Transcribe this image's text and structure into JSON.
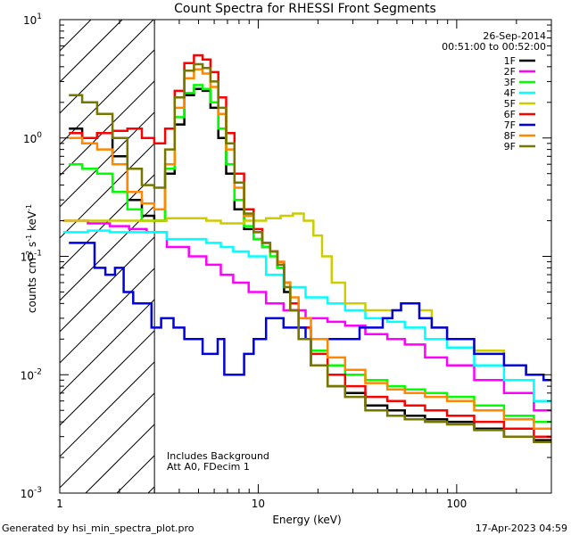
{
  "chart_data": {
    "type": "line",
    "title": "Count Spectra for RHESSI Front Segments",
    "xlabel": "Energy (keV)",
    "ylabel": "counts cm",
    "ylabel_sup1": "-2",
    "ylabel_s": " s",
    "ylabel_sup2": "-1",
    "ylabel_kev": " keV",
    "ylabel_sup3": "-1",
    "x_scale": "log",
    "y_scale": "log",
    "xlim": [
      1,
      300
    ],
    "ylim": [
      0.001,
      10
    ],
    "x_ticks": [
      {
        "value": 1,
        "label": "1"
      },
      {
        "value": 10,
        "label": "10"
      },
      {
        "value": 100,
        "label": "100"
      }
    ],
    "y_ticks": [
      {
        "value": 0.001,
        "base": "10",
        "exp": "-3"
      },
      {
        "value": 0.01,
        "base": "10",
        "exp": "-2"
      },
      {
        "value": 0.1,
        "base": "10",
        "exp": "-1"
      },
      {
        "value": 1,
        "base": "10",
        "exp": "0"
      },
      {
        "value": 10,
        "base": "10",
        "exp": "1"
      }
    ],
    "date": "26-Sep-2014",
    "time_range": "00:51:00 to 00:52:00",
    "shaded_region_max_kev": 3,
    "annotation_lines": [
      "Includes Background",
      "Att A0, FDecim 1"
    ],
    "footer_left": "Generated by hsi_min_spectra_plot.pro",
    "footer_right": "17-Apr-2023 04:59",
    "series": [
      {
        "name": "1F",
        "color": "#000000",
        "points": [
          [
            1.2,
            1.2
          ],
          [
            1.4,
            1.0
          ],
          [
            1.7,
            1.1
          ],
          [
            2.0,
            0.7
          ],
          [
            2.4,
            0.3
          ],
          [
            2.8,
            0.22
          ],
          [
            3.2,
            0.2
          ],
          [
            3.6,
            0.5
          ],
          [
            4.0,
            1.3
          ],
          [
            4.5,
            2.3
          ],
          [
            5.0,
            2.6
          ],
          [
            5.5,
            2.5
          ],
          [
            6.0,
            1.8
          ],
          [
            6.6,
            1.0
          ],
          [
            7.2,
            0.5
          ],
          [
            8.0,
            0.25
          ],
          [
            9.0,
            0.17
          ],
          [
            10,
            0.14
          ],
          [
            11,
            0.12
          ],
          [
            12,
            0.11
          ],
          [
            13,
            0.08
          ],
          [
            14,
            0.05
          ],
          [
            15,
            0.035
          ],
          [
            17,
            0.02
          ],
          [
            20,
            0.012
          ],
          [
            25,
            0.008
          ],
          [
            30,
            0.007
          ],
          [
            40,
            0.0055
          ],
          [
            50,
            0.005
          ],
          [
            60,
            0.0045
          ],
          [
            80,
            0.0042
          ],
          [
            100,
            0.004
          ],
          [
            150,
            0.0035
          ],
          [
            200,
            0.003
          ],
          [
            300,
            0.0028
          ]
        ]
      },
      {
        "name": "2F",
        "color": "#ff00ff",
        "points": [
          [
            1.2,
            0.2
          ],
          [
            1.6,
            0.19
          ],
          [
            2.0,
            0.18
          ],
          [
            2.5,
            0.17
          ],
          [
            3.0,
            0.16
          ],
          [
            4.0,
            0.12
          ],
          [
            5.0,
            0.1
          ],
          [
            6.0,
            0.085
          ],
          [
            7.0,
            0.07
          ],
          [
            8.0,
            0.06
          ],
          [
            10,
            0.05
          ],
          [
            12,
            0.04
          ],
          [
            15,
            0.035
          ],
          [
            20,
            0.03
          ],
          [
            25,
            0.028
          ],
          [
            30,
            0.026
          ],
          [
            40,
            0.022
          ],
          [
            50,
            0.02
          ],
          [
            60,
            0.018
          ],
          [
            80,
            0.014
          ],
          [
            100,
            0.012
          ],
          [
            150,
            0.009
          ],
          [
            200,
            0.007
          ],
          [
            300,
            0.005
          ]
        ]
      },
      {
        "name": "3F",
        "color": "#00ff00",
        "points": [
          [
            1.2,
            0.6
          ],
          [
            1.4,
            0.55
          ],
          [
            1.7,
            0.5
          ],
          [
            2.0,
            0.35
          ],
          [
            2.4,
            0.25
          ],
          [
            2.8,
            0.2
          ],
          [
            3.2,
            0.2
          ],
          [
            3.6,
            0.55
          ],
          [
            4.0,
            1.5
          ],
          [
            4.5,
            2.4
          ],
          [
            5.0,
            2.8
          ],
          [
            5.5,
            2.6
          ],
          [
            6.0,
            2.0
          ],
          [
            6.6,
            1.2
          ],
          [
            7.2,
            0.6
          ],
          [
            8.0,
            0.3
          ],
          [
            9.0,
            0.18
          ],
          [
            10,
            0.14
          ],
          [
            11,
            0.12
          ],
          [
            12,
            0.1
          ],
          [
            13,
            0.08
          ],
          [
            14,
            0.06
          ],
          [
            15,
            0.04
          ],
          [
            17,
            0.025
          ],
          [
            20,
            0.016
          ],
          [
            25,
            0.012
          ],
          [
            30,
            0.01
          ],
          [
            40,
            0.009
          ],
          [
            50,
            0.008
          ],
          [
            60,
            0.0075
          ],
          [
            80,
            0.007
          ],
          [
            100,
            0.0065
          ],
          [
            150,
            0.0055
          ],
          [
            200,
            0.0045
          ],
          [
            300,
            0.004
          ]
        ]
      },
      {
        "name": "4F",
        "color": "#00ffff",
        "points": [
          [
            1.2,
            0.16
          ],
          [
            1.6,
            0.165
          ],
          [
            2.0,
            0.16
          ],
          [
            2.5,
            0.16
          ],
          [
            3.0,
            0.16
          ],
          [
            4.0,
            0.14
          ],
          [
            5.0,
            0.14
          ],
          [
            6.0,
            0.13
          ],
          [
            7.0,
            0.12
          ],
          [
            8.0,
            0.11
          ],
          [
            10,
            0.1
          ],
          [
            12,
            0.07
          ],
          [
            15,
            0.055
          ],
          [
            20,
            0.045
          ],
          [
            25,
            0.04
          ],
          [
            30,
            0.035
          ],
          [
            40,
            0.03
          ],
          [
            50,
            0.028
          ],
          [
            60,
            0.025
          ],
          [
            80,
            0.02
          ],
          [
            100,
            0.017
          ],
          [
            150,
            0.012
          ],
          [
            200,
            0.009
          ],
          [
            300,
            0.006
          ]
        ]
      },
      {
        "name": "5F",
        "color": "#cccc00",
        "points": [
          [
            1.2,
            0.2
          ],
          [
            1.6,
            0.2
          ],
          [
            2.0,
            0.2
          ],
          [
            2.5,
            0.2
          ],
          [
            3.0,
            0.2
          ],
          [
            4.0,
            0.21
          ],
          [
            5.0,
            0.21
          ],
          [
            6.0,
            0.2
          ],
          [
            7.0,
            0.19
          ],
          [
            8.0,
            0.19
          ],
          [
            9.0,
            0.2
          ],
          [
            10,
            0.2
          ],
          [
            12,
            0.21
          ],
          [
            14,
            0.22
          ],
          [
            16,
            0.23
          ],
          [
            18,
            0.2
          ],
          [
            20,
            0.15
          ],
          [
            22,
            0.1
          ],
          [
            25,
            0.06
          ],
          [
            30,
            0.04
          ],
          [
            40,
            0.035
          ],
          [
            50,
            0.035
          ],
          [
            55,
            0.04
          ],
          [
            60,
            0.04
          ],
          [
            70,
            0.035
          ],
          [
            80,
            0.025
          ],
          [
            100,
            0.02
          ],
          [
            150,
            0.016
          ],
          [
            200,
            0.012
          ],
          [
            250,
            0.01
          ],
          [
            300,
            0.009
          ]
        ]
      },
      {
        "name": "6F",
        "color": "#ff0000",
        "points": [
          [
            1.2,
            1.1
          ],
          [
            1.4,
            1.0
          ],
          [
            1.7,
            1.1
          ],
          [
            2.0,
            1.15
          ],
          [
            2.4,
            1.2
          ],
          [
            2.8,
            1.0
          ],
          [
            3.2,
            0.9
          ],
          [
            3.6,
            1.2
          ],
          [
            4.0,
            2.5
          ],
          [
            4.5,
            4.3
          ],
          [
            5.0,
            5.0
          ],
          [
            5.5,
            4.6
          ],
          [
            6.0,
            3.6
          ],
          [
            6.6,
            2.2
          ],
          [
            7.2,
            1.1
          ],
          [
            8.0,
            0.5
          ],
          [
            9.0,
            0.25
          ],
          [
            10,
            0.17
          ],
          [
            11,
            0.13
          ],
          [
            12,
            0.11
          ],
          [
            13,
            0.09
          ],
          [
            14,
            0.06
          ],
          [
            15,
            0.04
          ],
          [
            17,
            0.025
          ],
          [
            20,
            0.015
          ],
          [
            25,
            0.01
          ],
          [
            30,
            0.008
          ],
          [
            40,
            0.0065
          ],
          [
            50,
            0.006
          ],
          [
            60,
            0.0055
          ],
          [
            80,
            0.005
          ],
          [
            100,
            0.0045
          ],
          [
            150,
            0.004
          ],
          [
            200,
            0.0035
          ],
          [
            300,
            0.003
          ]
        ]
      },
      {
        "name": "7F",
        "color": "#0000dd",
        "points": [
          [
            1.2,
            0.13
          ],
          [
            1.4,
            0.13
          ],
          [
            1.6,
            0.08
          ],
          [
            1.8,
            0.07
          ],
          [
            2.0,
            0.08
          ],
          [
            2.2,
            0.05
          ],
          [
            2.5,
            0.04
          ],
          [
            2.8,
            0.04
          ],
          [
            3.0,
            0.025
          ],
          [
            3.5,
            0.03
          ],
          [
            4.0,
            0.025
          ],
          [
            4.5,
            0.02
          ],
          [
            5.0,
            0.02
          ],
          [
            5.5,
            0.015
          ],
          [
            6.0,
            0.015
          ],
          [
            6.5,
            0.02
          ],
          [
            7.0,
            0.01
          ],
          [
            8.0,
            0.01
          ],
          [
            9.0,
            0.015
          ],
          [
            10,
            0.02
          ],
          [
            12,
            0.03
          ],
          [
            15,
            0.025
          ],
          [
            20,
            0.02
          ],
          [
            25,
            0.02
          ],
          [
            30,
            0.02
          ],
          [
            35,
            0.025
          ],
          [
            40,
            0.025
          ],
          [
            45,
            0.03
          ],
          [
            50,
            0.035
          ],
          [
            55,
            0.04
          ],
          [
            60,
            0.04
          ],
          [
            70,
            0.03
          ],
          [
            80,
            0.025
          ],
          [
            100,
            0.02
          ],
          [
            150,
            0.015
          ],
          [
            200,
            0.012
          ],
          [
            250,
            0.01
          ],
          [
            300,
            0.009
          ]
        ]
      },
      {
        "name": "8F",
        "color": "#ff8800",
        "points": [
          [
            1.2,
            1.0
          ],
          [
            1.4,
            0.9
          ],
          [
            1.7,
            0.8
          ],
          [
            2.0,
            0.6
          ],
          [
            2.4,
            0.35
          ],
          [
            2.8,
            0.28
          ],
          [
            3.2,
            0.25
          ],
          [
            3.6,
            0.6
          ],
          [
            4.0,
            1.8
          ],
          [
            4.5,
            3.2
          ],
          [
            5.0,
            3.8
          ],
          [
            5.5,
            3.5
          ],
          [
            6.0,
            2.7
          ],
          [
            6.6,
            1.6
          ],
          [
            7.2,
            0.8
          ],
          [
            8.0,
            0.38
          ],
          [
            9.0,
            0.22
          ],
          [
            10,
            0.16
          ],
          [
            11,
            0.13
          ],
          [
            12,
            0.11
          ],
          [
            13,
            0.09
          ],
          [
            14,
            0.06
          ],
          [
            15,
            0.045
          ],
          [
            17,
            0.03
          ],
          [
            20,
            0.02
          ],
          [
            25,
            0.014
          ],
          [
            30,
            0.011
          ],
          [
            40,
            0.0085
          ],
          [
            50,
            0.0075
          ],
          [
            60,
            0.007
          ],
          [
            80,
            0.0065
          ],
          [
            100,
            0.006
          ],
          [
            150,
            0.005
          ],
          [
            200,
            0.0042
          ],
          [
            300,
            0.0035
          ]
        ]
      },
      {
        "name": "9F",
        "color": "#777700",
        "points": [
          [
            1.2,
            2.3
          ],
          [
            1.4,
            2.0
          ],
          [
            1.7,
            1.6
          ],
          [
            2.0,
            1.0
          ],
          [
            2.4,
            0.55
          ],
          [
            2.8,
            0.4
          ],
          [
            3.2,
            0.38
          ],
          [
            3.6,
            0.8
          ],
          [
            4.0,
            2.2
          ],
          [
            4.5,
            3.7
          ],
          [
            5.0,
            4.2
          ],
          [
            5.5,
            3.9
          ],
          [
            6.0,
            3.0
          ],
          [
            6.6,
            1.8
          ],
          [
            7.2,
            0.9
          ],
          [
            8.0,
            0.42
          ],
          [
            9.0,
            0.23
          ],
          [
            10,
            0.16
          ],
          [
            11,
            0.13
          ],
          [
            12,
            0.11
          ],
          [
            13,
            0.085
          ],
          [
            14,
            0.055
          ],
          [
            15,
            0.035
          ],
          [
            17,
            0.02
          ],
          [
            20,
            0.012
          ],
          [
            25,
            0.008
          ],
          [
            30,
            0.0065
          ],
          [
            40,
            0.005
          ],
          [
            50,
            0.0045
          ],
          [
            60,
            0.0042
          ],
          [
            80,
            0.004
          ],
          [
            100,
            0.0038
          ],
          [
            150,
            0.0034
          ],
          [
            200,
            0.003
          ],
          [
            300,
            0.0027
          ]
        ]
      }
    ]
  }
}
